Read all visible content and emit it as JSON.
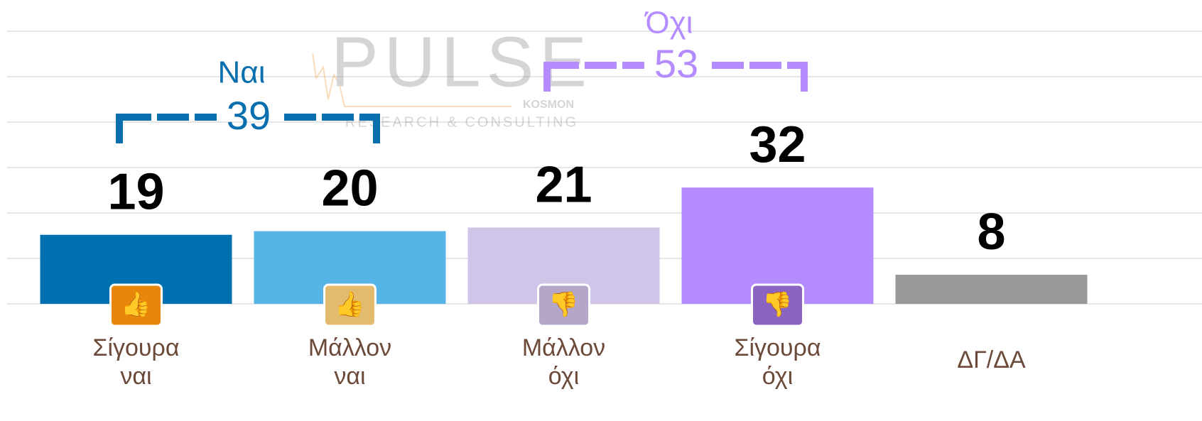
{
  "chart_data": {
    "type": "bar",
    "watermark": {
      "name": "PULSE",
      "subname": "KOSMON",
      "tagline": "RESEARCH & CONSULTING"
    },
    "categories": [
      "Σίγουρα ναι",
      "Μάλλον ναι",
      "Μάλλον όχι",
      "Σίγουρα όχι",
      "ΔΓ/ΔΑ"
    ],
    "values": [
      19,
      20,
      21,
      32,
      8
    ],
    "colors": [
      "#0070b0",
      "#56b4e6",
      "#d0c4e8",
      "#b48cff",
      "#999999"
    ],
    "ylim": [
      0,
      75
    ],
    "yticks": [
      0,
      12.5,
      25,
      37.5,
      50,
      62.5,
      75
    ],
    "grid": true,
    "annotations": [
      {
        "label": "Ναι",
        "value": 39,
        "color": "#0a6fae"
      },
      {
        "label": "Όχι",
        "value": 53,
        "color": "#b48cff"
      }
    ]
  }
}
